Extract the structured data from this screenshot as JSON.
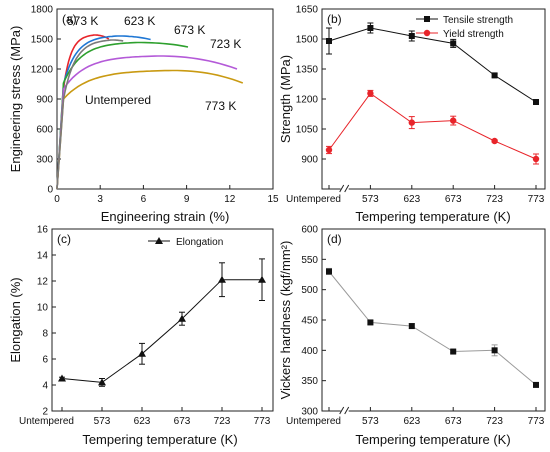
{
  "colors": {
    "black": "#111111",
    "red": "#e8242a",
    "untempered_curve": "#7a7a7a",
    "c573": "#e8242a",
    "c623": "#1f77d4",
    "c673": "#2ea02e",
    "c723": "#b45ad8",
    "c773": "#c99a12",
    "hardness_line": "#9a9a9a"
  },
  "chart_data": [
    {
      "panel": "(a)",
      "type": "line",
      "xlabel": "Engineering strain (%)",
      "ylabel": "Engineering stress (MPa)",
      "xlim": [
        0,
        15
      ],
      "ylim": [
        0,
        1800
      ],
      "xticks": [
        "0",
        "3",
        "6",
        "9",
        "12",
        "15"
      ],
      "yticks": [
        "0",
        "300",
        "600",
        "900",
        "1200",
        "1500",
        "1800"
      ],
      "series": [
        {
          "name": "573 K",
          "color_key": "c573",
          "yield": 1000,
          "peak": 1540,
          "ultimate_strain": 2.6,
          "end_strain": 3.6,
          "end_stress": 1500
        },
        {
          "name": "623 K",
          "color_key": "c623",
          "yield": 1050,
          "peak": 1530,
          "ultimate_strain": 4.2,
          "end_strain": 6.5,
          "end_stress": 1495
        },
        {
          "name": "673 K",
          "color_key": "c673",
          "yield": 1060,
          "peak": 1465,
          "ultimate_strain": 5.6,
          "end_strain": 9.1,
          "end_stress": 1420
        },
        {
          "name": "723 K",
          "color_key": "c723",
          "yield": 1000,
          "peak": 1330,
          "ultimate_strain": 7.0,
          "end_strain": 12.5,
          "end_stress": 1200
        },
        {
          "name": "773 K",
          "color_key": "c773",
          "yield": 900,
          "peak": 1185,
          "ultimate_strain": 8.0,
          "end_strain": 12.9,
          "end_stress": 1060
        },
        {
          "name": "Untempered",
          "color_key": "untempered_curve",
          "yield": 900,
          "peak": 1490,
          "ultimate_strain": 3.8,
          "end_strain": 4.6,
          "end_stress": 1480
        }
      ],
      "curve_labels": [
        {
          "text": "573 K",
          "color_key": "c573"
        },
        {
          "text": "623 K",
          "color_key": "c623"
        },
        {
          "text": "673 K",
          "color_key": "c673"
        },
        {
          "text": "723 K",
          "color_key": "c723"
        },
        {
          "text": "773 K",
          "color_key": "c773"
        },
        {
          "text": "Untempered",
          "color_key": "black"
        }
      ]
    },
    {
      "panel": "(b)",
      "type": "line",
      "xlabel": "Tempering temperature (K)",
      "ylabel": "Strength (MPa)",
      "categories": [
        "Untempered",
        "573",
        "623",
        "673",
        "723",
        "773"
      ],
      "ylim": [
        750,
        1650
      ],
      "yticks": [
        "900",
        "1050",
        "1200",
        "1350",
        "1500",
        "1650"
      ],
      "axis_break": true,
      "legend_position": "top-right",
      "series": [
        {
          "name": "Tensile strength",
          "color_key": "black",
          "marker": "square",
          "values": [
            1490,
            1555,
            1515,
            1478,
            1318,
            1185
          ],
          "errors": [
            65,
            25,
            25,
            20,
            8,
            10
          ]
        },
        {
          "name": "Yield strength",
          "color_key": "red",
          "marker": "circle",
          "values": [
            945,
            1228,
            1082,
            1092,
            990,
            900
          ],
          "errors": [
            18,
            15,
            30,
            22,
            6,
            25
          ]
        }
      ]
    },
    {
      "panel": "(c)",
      "type": "line",
      "xlabel": "Tempering temperature (K)",
      "ylabel": "Elongation (%)",
      "categories": [
        "Untempered",
        "573",
        "623",
        "673",
        "723",
        "773"
      ],
      "ylim": [
        2,
        16
      ],
      "yticks": [
        "2",
        "4",
        "6",
        "8",
        "10",
        "12",
        "14",
        "16"
      ],
      "legend_position": "top-center",
      "series": [
        {
          "name": "Elongation",
          "color_key": "black",
          "marker": "triangle",
          "values": [
            4.5,
            4.2,
            6.4,
            9.1,
            12.1,
            12.1
          ],
          "errors": [
            0.1,
            0.3,
            0.8,
            0.5,
            1.3,
            1.6
          ]
        }
      ]
    },
    {
      "panel": "(d)",
      "type": "line",
      "xlabel": "Tempering temperature (K)",
      "ylabel": "Vickers hardness (kgf/mm²)",
      "categories": [
        "Untempered",
        "573",
        "623",
        "673",
        "723",
        "773"
      ],
      "ylim": [
        300,
        600
      ],
      "yticks": [
        "300",
        "350",
        "400",
        "450",
        "500",
        "550",
        "600"
      ],
      "axis_break": true,
      "series": [
        {
          "color_key": "hardness_line",
          "marker": "square",
          "values": [
            530,
            446,
            440,
            398,
            400,
            343
          ],
          "errors": [
            5,
            3,
            4,
            2,
            9,
            2
          ]
        }
      ]
    }
  ]
}
